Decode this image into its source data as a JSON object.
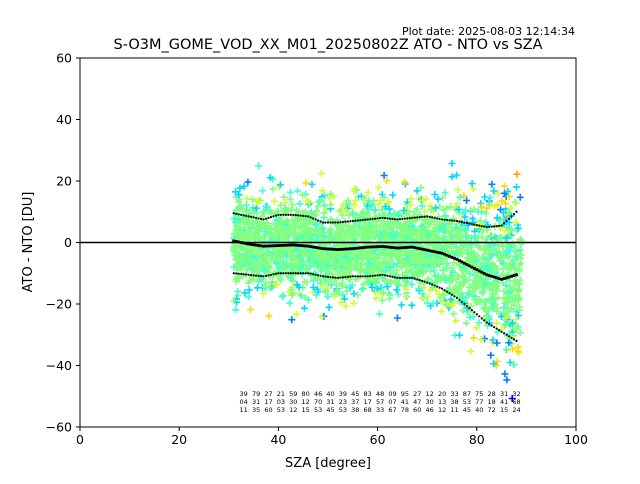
{
  "figure": {
    "plot_date": "Plot date: 2025-08-03 12:14:34"
  },
  "chart_data": {
    "type": "scatter",
    "title": "S-O3M_GOME_VOD_XX_M01_20250802Z ATO - NTO vs SZA",
    "xlabel": "SZA [degree]",
    "ylabel": "ATO - NTO [DU]",
    "xlim": [
      0,
      100
    ],
    "ylim": [
      -60,
      60
    ],
    "x_ticks": [
      "0",
      "20",
      "40",
      "60",
      "80",
      "100"
    ],
    "y_ticks": [
      "60",
      "40",
      "20",
      "0",
      "−20",
      "−40",
      "−60"
    ],
    "grid": false,
    "legend": "none",
    "reference_line": {
      "y": 0,
      "color": "#000000"
    },
    "point_cloud": {
      "marker": "+",
      "sza_range": [
        31,
        89
      ],
      "colors": [
        "#0000ff",
        "#0080ff",
        "#00d8ff",
        "#40ffd0",
        "#80ff80",
        "#d0ff30",
        "#ffd800",
        "#ffa000"
      ],
      "dominant_color": "#80ff80"
    },
    "series": [
      {
        "style": "black squares",
        "x": [
          31,
          34,
          37,
          40,
          43,
          46,
          49,
          52,
          55,
          58,
          61,
          64,
          67,
          70,
          73,
          76,
          79,
          82,
          85,
          88
        ],
        "y": [
          0.5,
          -0.5,
          -1.2,
          -1.0,
          -0.8,
          -1.2,
          -2.0,
          -2.3,
          -2.0,
          -1.5,
          -1.3,
          -1.8,
          -1.5,
          -2.5,
          -3.5,
          -5.5,
          -8.0,
          -10.5,
          -12.0,
          -10.5
        ]
      },
      {
        "style": "black dots",
        "x": [
          31,
          34,
          37,
          40,
          43,
          46,
          49,
          52,
          55,
          58,
          61,
          64,
          67,
          70,
          73,
          76,
          79,
          82,
          85,
          88
        ],
        "y": [
          9.5,
          8.5,
          7.5,
          9.0,
          9.0,
          8.5,
          6.5,
          6.5,
          7.0,
          7.5,
          8.0,
          7.5,
          8.0,
          8.5,
          7.5,
          7.0,
          6.0,
          5.0,
          5.5,
          10.0
        ]
      },
      {
        "style": "black dots",
        "x": [
          31,
          34,
          37,
          40,
          43,
          46,
          49,
          52,
          55,
          58,
          61,
          64,
          67,
          70,
          73,
          76,
          79,
          82,
          85,
          88
        ],
        "y": [
          -10.0,
          -10.5,
          -11.0,
          -10.0,
          -10.0,
          -10.0,
          -11.0,
          -11.5,
          -11.0,
          -11.0,
          -10.5,
          -11.5,
          -11.5,
          -13.0,
          -15.0,
          -18.0,
          -22.0,
          -26.0,
          -29.0,
          -32.0
        ]
      }
    ],
    "count_labels": {
      "x": [
        33,
        35.5,
        38,
        40.5,
        43,
        45.5,
        48,
        50.5,
        53,
        55.5,
        58,
        60.5,
        63,
        65.5,
        68,
        70.5,
        73,
        75.5,
        78,
        80.5,
        83,
        85.5,
        88
      ],
      "rows": [
        [
          "39",
          "79",
          "27",
          "21",
          "59",
          "80",
          "46",
          "40",
          "39",
          "45",
          "83",
          "48",
          "09",
          "95",
          "27",
          "12",
          "20",
          "33",
          "87",
          "75",
          "28",
          "31",
          "32"
        ],
        [
          "04",
          "31",
          "17",
          "03",
          "30",
          "12",
          "70",
          "31",
          "23",
          "37",
          "17",
          "57",
          "07",
          "41",
          "47",
          "30",
          "13",
          "38",
          "53",
          "77",
          "18",
          "41",
          "68"
        ],
        [
          "11",
          "35",
          "60",
          "53",
          "12",
          "15",
          "53",
          "45",
          "53",
          "38",
          "68",
          "33",
          "67",
          "78",
          "60",
          "46",
          "12",
          "11",
          "45",
          "40",
          "72",
          "15",
          "24"
        ]
      ]
    }
  }
}
